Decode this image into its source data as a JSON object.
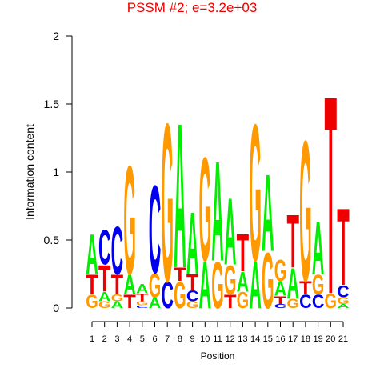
{
  "chart_data": {
    "type": "sequence-logo",
    "title": "PSSM #2; e=3.2e+03",
    "xlabel": "Position",
    "ylabel": "Information content",
    "ylim": [
      0,
      2
    ],
    "y_ticks": [
      "0",
      "0.5",
      "1",
      "1.5",
      "2"
    ],
    "y_tick_values": [
      0,
      0.5,
      1,
      1.5,
      2
    ],
    "grid": false,
    "colors": {
      "A": "#00ee00",
      "C": "#0000ee",
      "G": "#ff9900",
      "T": "#ee0000",
      "title": "#ee0000"
    },
    "positions": [
      {
        "label": "1",
        "letters": [
          {
            "base": "G",
            "height": 0.1
          },
          {
            "base": "T",
            "height": 0.15
          },
          {
            "base": "A",
            "height": 0.3
          }
        ]
      },
      {
        "label": "2",
        "letters": [
          {
            "base": "G",
            "height": 0.05
          },
          {
            "base": "A",
            "height": 0.07
          },
          {
            "base": "T",
            "height": 0.2
          },
          {
            "base": "C",
            "height": 0.26
          }
        ]
      },
      {
        "label": "3",
        "letters": [
          {
            "base": "A",
            "height": 0.05
          },
          {
            "base": "G",
            "height": 0.05
          },
          {
            "base": "T",
            "height": 0.15
          },
          {
            "base": "C",
            "height": 0.36
          }
        ]
      },
      {
        "label": "4",
        "letters": [
          {
            "base": "T",
            "height": 0.1
          },
          {
            "base": "A",
            "height": 0.15
          },
          {
            "base": "G",
            "height": 0.82
          }
        ]
      },
      {
        "label": "5",
        "letters": [
          {
            "base": "C",
            "height": 0.02
          },
          {
            "base": "G",
            "height": 0.03
          },
          {
            "base": "T",
            "height": 0.06
          },
          {
            "base": "A",
            "height": 0.07
          }
        ]
      },
      {
        "label": "6",
        "letters": [
          {
            "base": "A",
            "height": 0.08
          },
          {
            "base": "G",
            "height": 0.18
          },
          {
            "base": "C",
            "height": 0.66
          }
        ]
      },
      {
        "label": "7",
        "letters": [
          {
            "base": "C",
            "height": 0.2
          },
          {
            "base": "G",
            "height": 1.19
          }
        ]
      },
      {
        "label": "8",
        "letters": [
          {
            "base": "G",
            "height": 0.2
          },
          {
            "base": "T",
            "height": 0.1
          },
          {
            "base": "A",
            "height": 1.09
          }
        ]
      },
      {
        "label": "9",
        "letters": [
          {
            "base": "G",
            "height": 0.05
          },
          {
            "base": "C",
            "height": 0.08
          },
          {
            "base": "T",
            "height": 0.12
          },
          {
            "base": "A",
            "height": 0.47
          }
        ]
      },
      {
        "label": "10",
        "letters": [
          {
            "base": "A",
            "height": 0.35
          },
          {
            "base": "G",
            "height": 0.78
          }
        ]
      },
      {
        "label": "11",
        "letters": [
          {
            "base": "G",
            "height": 0.35
          },
          {
            "base": "A",
            "height": 0.75
          }
        ]
      },
      {
        "label": "12",
        "letters": [
          {
            "base": "T",
            "height": 0.1
          },
          {
            "base": "G",
            "height": 0.22
          },
          {
            "base": "A",
            "height": 0.5
          }
        ]
      },
      {
        "label": "13",
        "letters": [
          {
            "base": "G",
            "height": 0.12
          },
          {
            "base": "A",
            "height": 0.15
          },
          {
            "base": "T",
            "height": 0.28
          }
        ]
      },
      {
        "label": "14",
        "letters": [
          {
            "base": "A",
            "height": 0.35
          },
          {
            "base": "G",
            "height": 1.03
          }
        ]
      },
      {
        "label": "15",
        "letters": [
          {
            "base": "G",
            "height": 0.42
          },
          {
            "base": "A",
            "height": 0.58
          }
        ]
      },
      {
        "label": "16",
        "letters": [
          {
            "base": "C",
            "height": 0.03
          },
          {
            "base": "T",
            "height": 0.06
          },
          {
            "base": "A",
            "height": 0.11
          },
          {
            "base": "G",
            "height": 0.16
          }
        ]
      },
      {
        "label": "17",
        "letters": [
          {
            "base": "G",
            "height": 0.07
          },
          {
            "base": "A",
            "height": 0.23
          },
          {
            "base": "T",
            "height": 0.4
          }
        ]
      },
      {
        "label": "18",
        "letters": [
          {
            "base": "C",
            "height": 0.1
          },
          {
            "base": "T",
            "height": 0.1
          },
          {
            "base": "G",
            "height": 1.06
          }
        ]
      },
      {
        "label": "19",
        "letters": [
          {
            "base": "C",
            "height": 0.1
          },
          {
            "base": "G",
            "height": 0.15
          },
          {
            "base": "A",
            "height": 0.4
          }
        ]
      },
      {
        "label": "20",
        "letters": [
          {
            "base": "G",
            "height": 0.11
          },
          {
            "base": "T",
            "height": 1.49
          }
        ]
      },
      {
        "label": "21",
        "letters": [
          {
            "base": "A",
            "height": 0.03
          },
          {
            "base": "G",
            "height": 0.05
          },
          {
            "base": "C",
            "height": 0.09
          },
          {
            "base": "T",
            "height": 0.58
          }
        ]
      }
    ]
  }
}
